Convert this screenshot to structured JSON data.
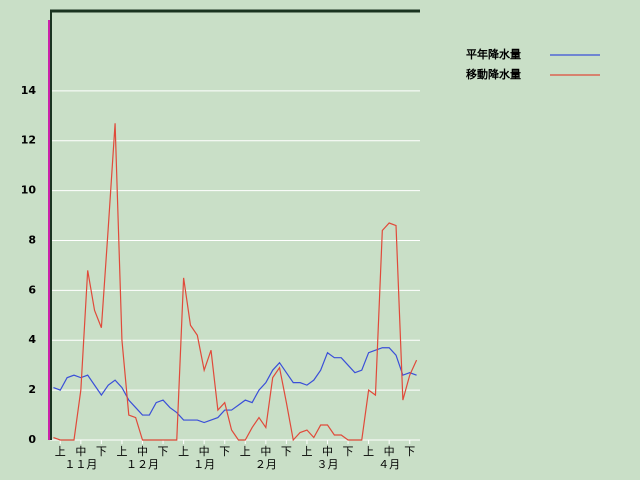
{
  "chart_data": {
    "type": "line",
    "categories": [
      null,
      "上",
      null,
      null,
      "中",
      null,
      null,
      "下",
      null,
      null,
      "上",
      null,
      null,
      "中",
      null,
      null,
      "下",
      null,
      null,
      "上",
      null,
      null,
      "中",
      null,
      null,
      "下",
      null,
      null,
      "上",
      null,
      null,
      "中",
      null,
      null,
      "下",
      null,
      null,
      "上",
      null,
      null,
      "中",
      null,
      null,
      "下",
      null,
      null,
      "上",
      null,
      null,
      "中",
      null,
      null,
      "下",
      null
    ],
    "months": [
      "１１月",
      "１２月",
      "１月",
      "２月",
      "３月",
      "４月"
    ],
    "series": [
      {
        "name": "平年降水量",
        "color": "#3a4fd8",
        "values": [
          2.1,
          2.0,
          2.5,
          2.6,
          2.5,
          2.6,
          2.2,
          1.8,
          2.2,
          2.4,
          2.1,
          1.6,
          1.3,
          1.0,
          1.0,
          1.5,
          1.6,
          1.3,
          1.1,
          0.8,
          0.8,
          0.8,
          0.7,
          0.8,
          0.9,
          1.2,
          1.2,
          1.4,
          1.6,
          1.5,
          2.0,
          2.3,
          2.8,
          3.1,
          2.7,
          2.3,
          2.3,
          2.2,
          2.4,
          2.8,
          3.5,
          3.3,
          3.3,
          3.0,
          2.7,
          2.8,
          3.5,
          3.6,
          3.7,
          3.7,
          3.4,
          2.6,
          2.7,
          2.6
        ]
      },
      {
        "name": "移動降水量",
        "color": "#e04a3a",
        "values": [
          0.1,
          0,
          0,
          0,
          2.0,
          6.8,
          5.2,
          4.5,
          8.5,
          12.7,
          4.0,
          1.0,
          0.9,
          0,
          0,
          0,
          0,
          0,
          0,
          6.5,
          4.6,
          4.2,
          2.8,
          3.6,
          1.2,
          1.5,
          0.4,
          0,
          0,
          0.5,
          0.9,
          0.5,
          2.5,
          2.9,
          1.5,
          0,
          0.3,
          0.4,
          0.1,
          0.6,
          0.6,
          0.2,
          0.2,
          0,
          0,
          0,
          2.0,
          1.8,
          8.4,
          8.7,
          8.6,
          1.6,
          2.6,
          3.2
        ]
      }
    ],
    "ylim": [
      0,
      17.2
    ],
    "yticks": [
      0,
      2,
      4,
      6,
      8,
      10,
      12,
      14
    ],
    "grid": true
  }
}
